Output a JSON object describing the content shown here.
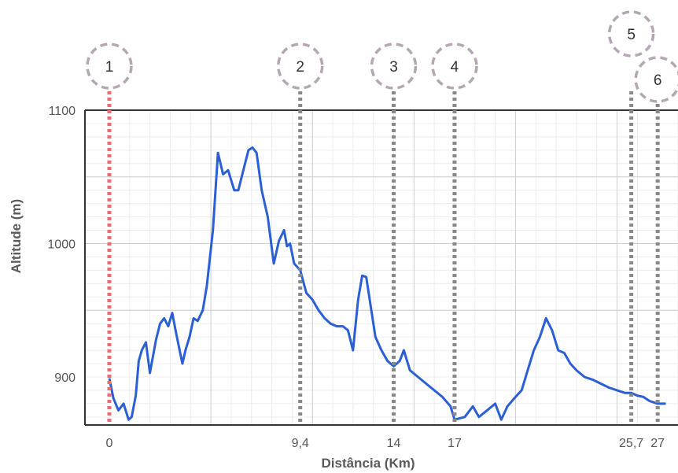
{
  "chart_data": {
    "type": "line",
    "title": "",
    "xlabel": "Distância (Km)",
    "ylabel": "Altitude (m)",
    "xlim": [
      -1.2,
      28
    ],
    "ylim": [
      864,
      1100
    ],
    "grid": true,
    "x_ticks": [
      {
        "value": 0,
        "label": "0"
      },
      {
        "value": 9.4,
        "label": "9,4"
      },
      {
        "value": 14,
        "label": "14"
      },
      {
        "value": 17,
        "label": "17"
      },
      {
        "value": 25.7,
        "label": "25,7"
      },
      {
        "value": 27,
        "label": "27"
      }
    ],
    "y_ticks": [
      {
        "value": 900,
        "label": "900"
      },
      {
        "value": 1000,
        "label": "1000"
      },
      {
        "value": 1100,
        "label": "1100"
      }
    ],
    "markers": [
      {
        "label": "1",
        "x": 0,
        "color": "#e07070"
      },
      {
        "label": "2",
        "x": 9.4,
        "color": "#888888"
      },
      {
        "label": "3",
        "x": 14,
        "color": "#888888"
      },
      {
        "label": "4",
        "x": 17,
        "color": "#888888"
      },
      {
        "label": "5",
        "x": 25.7,
        "color": "#888888"
      },
      {
        "label": "6",
        "x": 27,
        "color": "#888888"
      }
    ],
    "line_color": "#2a5fd6",
    "series": [
      {
        "name": "",
        "x": [
          0,
          0.2,
          0.45,
          0.7,
          0.95,
          1.1,
          1.3,
          1.45,
          1.6,
          1.8,
          2.0,
          2.3,
          2.5,
          2.7,
          2.9,
          3.1,
          3.3,
          3.6,
          3.75,
          3.95,
          4.15,
          4.35,
          4.6,
          4.8,
          5.1,
          5.35,
          5.6,
          5.85,
          6.15,
          6.35,
          6.6,
          6.85,
          7.05,
          7.25,
          7.5,
          7.8,
          8.1,
          8.35,
          8.6,
          8.75,
          8.9,
          9.1,
          9.4,
          9.7,
          10.0,
          10.3,
          10.6,
          10.9,
          11.2,
          11.5,
          11.75,
          12.0,
          12.25,
          12.45,
          12.65,
          12.85,
          13.1,
          13.4,
          13.7,
          14.0,
          14.3,
          14.5,
          14.8,
          15.2,
          15.6,
          16.0,
          16.4,
          16.8,
          17.0,
          17.5,
          17.9,
          18.2,
          18.6,
          19.0,
          19.3,
          19.6,
          20.0,
          20.3,
          20.6,
          20.9,
          21.2,
          21.5,
          21.8,
          22.1,
          22.4,
          22.7,
          23.0,
          23.4,
          23.8,
          24.2,
          24.6,
          25.0,
          25.4,
          25.7,
          26.0,
          26.3,
          26.6,
          27.0,
          27.4
        ],
        "y": [
          899,
          884,
          875,
          880,
          868,
          870,
          886,
          912,
          920,
          926,
          903,
          928,
          940,
          944,
          938,
          948,
          932,
          910,
          920,
          930,
          944,
          942,
          950,
          968,
          1010,
          1068,
          1052,
          1055,
          1040,
          1040,
          1055,
          1070,
          1072,
          1068,
          1040,
          1020,
          985,
          1002,
          1010,
          998,
          1000,
          985,
          980,
          963,
          958,
          950,
          944,
          940,
          938,
          938,
          935,
          920,
          958,
          976,
          975,
          955,
          930,
          920,
          912,
          908,
          912,
          920,
          905,
          900,
          895,
          890,
          885,
          878,
          868,
          870,
          878,
          870,
          875,
          880,
          868,
          878,
          885,
          890,
          905,
          920,
          930,
          944,
          935,
          920,
          918,
          910,
          905,
          900,
          898,
          895,
          892,
          890,
          888,
          888,
          886,
          885,
          882,
          880,
          880
        ]
      }
    ]
  }
}
